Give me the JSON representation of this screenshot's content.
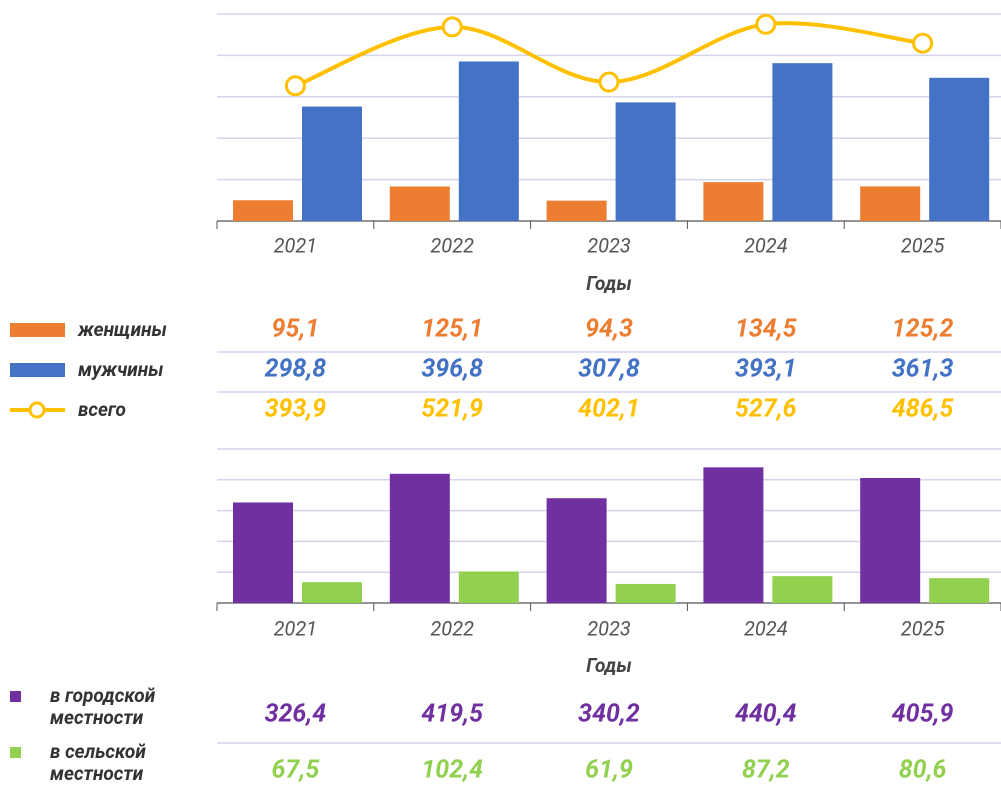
{
  "chart_data": [
    {
      "type": "bar",
      "xlabel": "Годы",
      "categories": [
        "2021",
        "2022",
        "2023",
        "2024",
        "2025"
      ],
      "ylim": [
        50,
        500
      ],
      "yticks": [
        50,
        140,
        230,
        320,
        410,
        500
      ],
      "y2lim": [
        100,
        550
      ],
      "grid": true,
      "series": [
        {
          "name": "женщины",
          "color": "#ed7d31",
          "values": [
            95.1,
            125.1,
            94.3,
            134.5,
            125.2
          ],
          "value_labels": [
            "95,1",
            "125,1",
            "94,3",
            "134,5",
            "125,2"
          ]
        },
        {
          "name": "мужчины",
          "color": "#4472c4",
          "values": [
            298.8,
            396.8,
            307.8,
            393.1,
            361.3
          ],
          "value_labels": [
            "298,8",
            "396,8",
            "307,8",
            "393,1",
            "361,3"
          ]
        },
        {
          "name": "всего",
          "type": "line",
          "axis": "y2",
          "color": "#ffc000",
          "values": [
            393.9,
            521.9,
            402.1,
            527.6,
            486.5
          ],
          "value_labels": [
            "393,9",
            "521,9",
            "402,1",
            "527,6",
            "486,5"
          ]
        }
      ]
    },
    {
      "type": "bar",
      "xlabel": "Годы",
      "categories": [
        "2021",
        "2022",
        "2023",
        "2024",
        "2025"
      ],
      "ylim": [
        0,
        500
      ],
      "yticks": [
        0,
        100,
        200,
        300,
        400,
        500
      ],
      "grid": true,
      "series": [
        {
          "name": "в городской местности",
          "color": "#7030a0",
          "values": [
            326.4,
            419.5,
            340.2,
            440.4,
            405.9
          ],
          "value_labels": [
            "326,4",
            "419,5",
            "340,2",
            "440,4",
            "405,9"
          ]
        },
        {
          "name": "в сельской местности",
          "color": "#92d050",
          "values": [
            67.5,
            102.4,
            61.9,
            87.2,
            80.6
          ],
          "value_labels": [
            "67,5",
            "102,4",
            "61,9",
            "87,2",
            "80,6"
          ]
        }
      ]
    }
  ]
}
